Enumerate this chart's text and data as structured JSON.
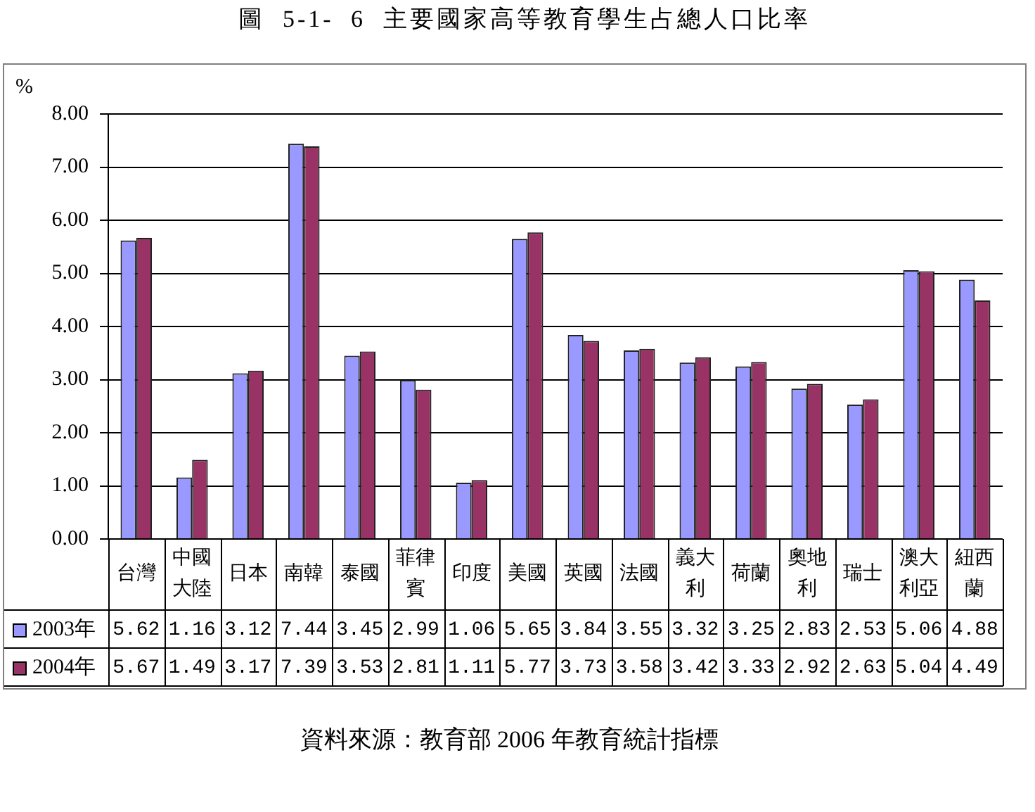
{
  "chart_data": {
    "type": "bar",
    "title": "圖 5-1- 6 主要國家高等教育學生占總人口比率",
    "ylabel": "%",
    "annotations": [
      "資料來源：教育部 2006 年教育統計指標"
    ],
    "categories": [
      "台灣",
      "中國大陸",
      "日本",
      "南韓",
      "泰國",
      "菲律賓",
      "印度",
      "美國",
      "英國",
      "法國",
      "義大利",
      "荷蘭",
      "奧地利",
      "瑞士",
      "澳大利亞",
      "紐西蘭"
    ],
    "series": [
      {
        "name": "2003年",
        "color": "#9999ff",
        "values": [
          5.62,
          1.16,
          3.12,
          7.44,
          3.45,
          2.99,
          1.06,
          5.65,
          3.84,
          3.55,
          3.32,
          3.25,
          2.83,
          2.53,
          5.06,
          4.88
        ]
      },
      {
        "name": "2004年",
        "color": "#993366",
        "values": [
          5.67,
          1.49,
          3.17,
          7.39,
          3.53,
          2.81,
          1.11,
          5.77,
          3.73,
          3.58,
          3.42,
          3.33,
          2.92,
          2.63,
          5.04,
          4.49
        ]
      }
    ],
    "ylim": [
      0,
      8
    ],
    "yticks": [
      {
        "value": 0,
        "label": "0.00"
      },
      {
        "value": 1,
        "label": "1.00"
      },
      {
        "value": 2,
        "label": "2.00"
      },
      {
        "value": 3,
        "label": "3.00"
      },
      {
        "value": 4,
        "label": "4.00"
      },
      {
        "value": 5,
        "label": "5.00"
      },
      {
        "value": 6,
        "label": "6.00"
      },
      {
        "value": 7,
        "label": "7.00"
      },
      {
        "value": 8,
        "label": "8.00"
      }
    ],
    "grid": "y",
    "legend": "bottom",
    "data_labels": true
  }
}
